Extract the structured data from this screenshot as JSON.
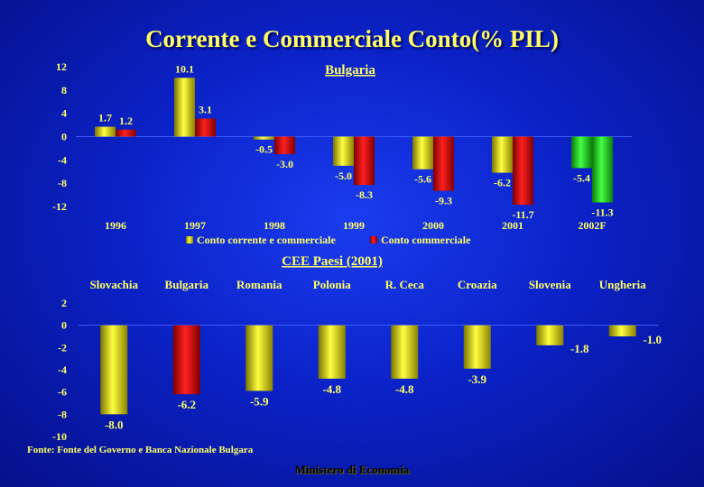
{
  "title": "Corrente e Commerciale Conto(% PIL)",
  "source": "Fonte: Fonte del Governo e  Banca Nazionale Bulgara",
  "footer": "Ministero di Economia",
  "colors": {
    "background": "#0b22c8",
    "label": "#ffff66",
    "current_account": "#f5f000",
    "trade_account": "#e00000",
    "forecast": "#22dd22"
  },
  "chart_data": [
    {
      "type": "bar",
      "title": "Bulgaria",
      "categories": [
        "1996",
        "1997",
        "1998",
        "1999",
        "2000",
        "2001",
        "2002F"
      ],
      "series": [
        {
          "name": "Conto corrente e commerciale",
          "values": [
            1.7,
            10.1,
            -0.5,
            -5.0,
            -5.6,
            -6.2,
            -5.4
          ]
        },
        {
          "name": "Conto commerciale",
          "values": [
            1.2,
            3.1,
            -3.0,
            -8.3,
            -9.3,
            -11.7,
            -11.3
          ]
        }
      ],
      "data_labels": [
        [
          "1.7",
          "10.1",
          "-0.5",
          "-5.0",
          "-5.6",
          "-6.2",
          "-5.4"
        ],
        [
          "1.2",
          "3.1",
          "-3.0",
          "-8.3",
          "-9.3",
          "-11.7",
          "-11.3"
        ]
      ],
      "yticks": [
        12,
        8,
        4,
        0,
        -4,
        -8,
        -12
      ],
      "ylim": [
        -12,
        12
      ],
      "forecast_category": "2002F",
      "legend_position": "bottom",
      "grid": false
    },
    {
      "type": "bar",
      "title": "CEE Paesi (2001)",
      "categories": [
        "Slovachia",
        "Bulgaria",
        "Romania",
        "Polonia",
        "R. Ceca",
        "Croazia",
        "Slovenia",
        "Ungheria"
      ],
      "series": [
        {
          "values": [
            -8.0,
            -6.2,
            -5.9,
            -4.8,
            -4.8,
            -3.9,
            -1.8,
            -1.0
          ]
        }
      ],
      "data_labels": [
        "-8.0",
        "-6.2",
        "-5.9",
        "-4.8",
        "-4.8",
        "-3.9",
        "-1.8",
        "-1.0"
      ],
      "highlight_category": "Bulgaria",
      "yticks": [
        2,
        0,
        -2,
        -4,
        -6,
        -8,
        -10
      ],
      "ylim": [
        -10,
        2
      ],
      "category_labels_position": "top",
      "grid": false
    }
  ]
}
